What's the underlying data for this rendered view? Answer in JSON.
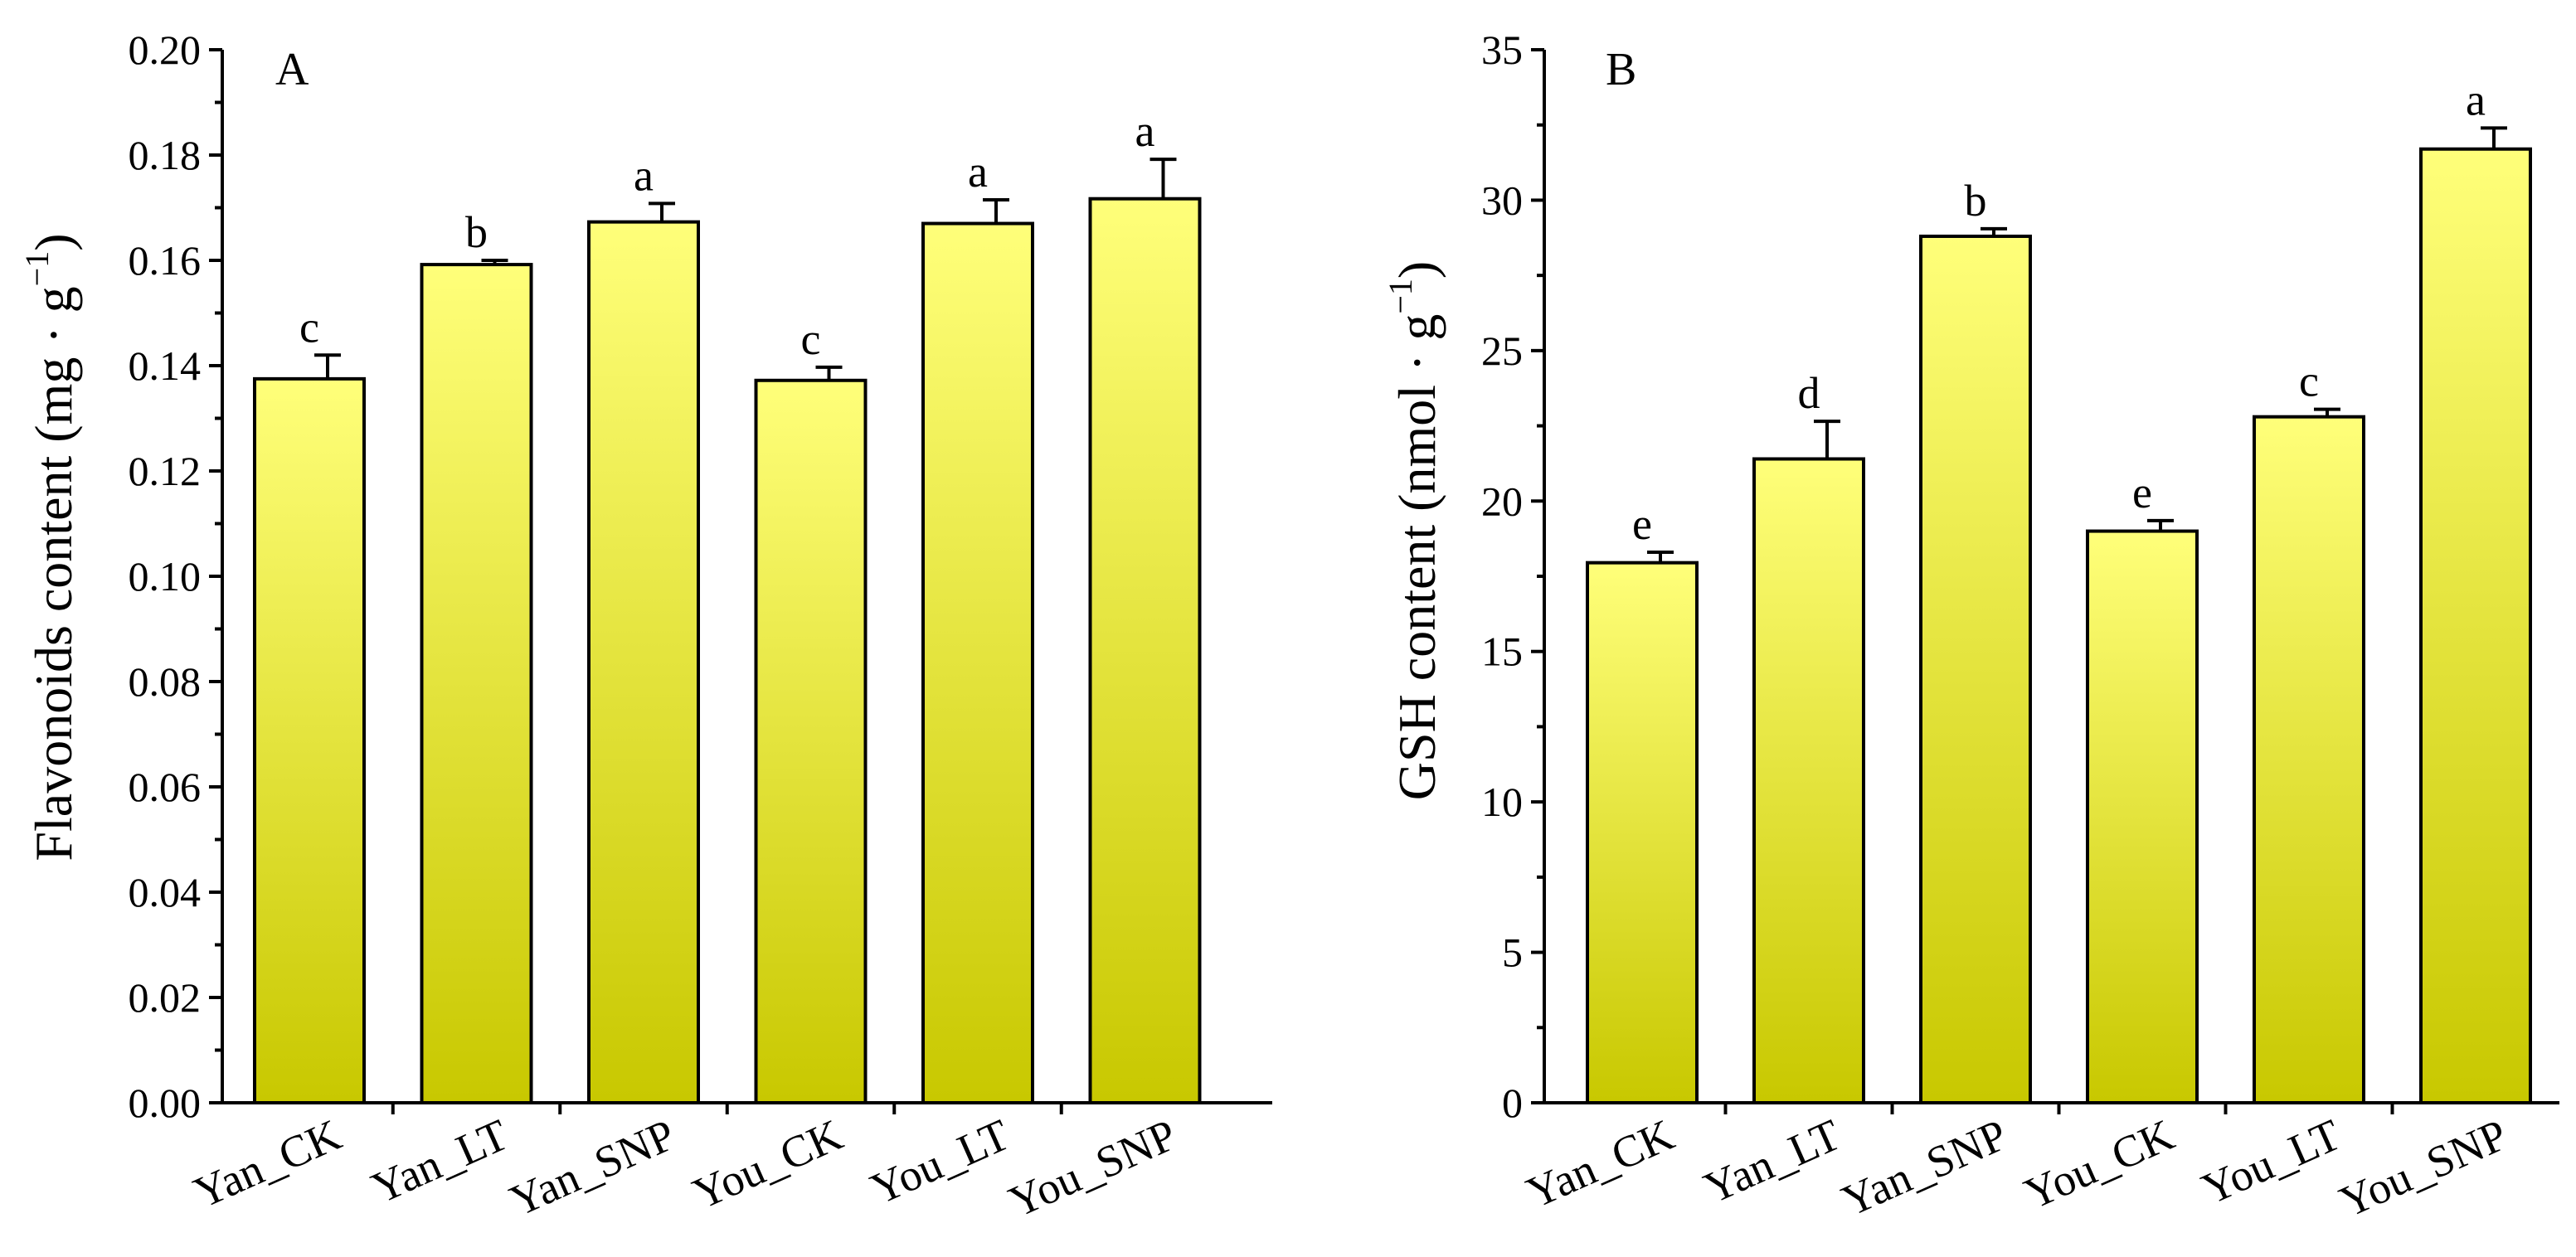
{
  "chart_data": [
    {
      "type": "bar",
      "panel_label": "A",
      "ylabel": "Flavonoids content (mg · g",
      "ylabel_unit_suffix": ")",
      "ylabel_superscript": "−1",
      "categories": [
        "Yan_CK",
        "Yan_LT",
        "Yan_SNP",
        "You_CK",
        "You_LT",
        "You_SNP"
      ],
      "values": [
        0.1375,
        0.1592,
        0.1673,
        0.1372,
        0.167,
        0.1717
      ],
      "errors": [
        0.0045,
        0.0008,
        0.0035,
        0.0025,
        0.0045,
        0.0075
      ],
      "significance": [
        "c",
        "b",
        "a",
        "c",
        "a",
        "a"
      ],
      "ylim": [
        0,
        0.2
      ],
      "yticks": [
        "0.00",
        "0.02",
        "0.04",
        "0.06",
        "0.08",
        "0.10",
        "0.12",
        "0.14",
        "0.16",
        "0.18",
        "0.20"
      ],
      "grid": false
    },
    {
      "type": "bar",
      "panel_label": "B",
      "ylabel": "GSH content (nmol · g",
      "ylabel_unit_suffix": ")",
      "ylabel_superscript": "−1",
      "categories": [
        "Yan_CK",
        "Yan_LT",
        "Yan_SNP",
        "You_CK",
        "You_LT",
        "You_SNP"
      ],
      "values": [
        17.95,
        21.4,
        28.8,
        19.0,
        22.8,
        31.7
      ],
      "errors": [
        0.35,
        1.25,
        0.25,
        0.35,
        0.25,
        0.7
      ],
      "significance": [
        "e",
        "d",
        "b",
        "e",
        "c",
        "a"
      ],
      "ylim": [
        0,
        35
      ],
      "yticks": [
        "0",
        "5",
        "10",
        "15",
        "20",
        "25",
        "30",
        "35"
      ],
      "grid": false
    }
  ],
  "colors": {
    "bar_top": "#ffff7a",
    "bar_bottom": "#c8c800",
    "axis": "#000000"
  }
}
